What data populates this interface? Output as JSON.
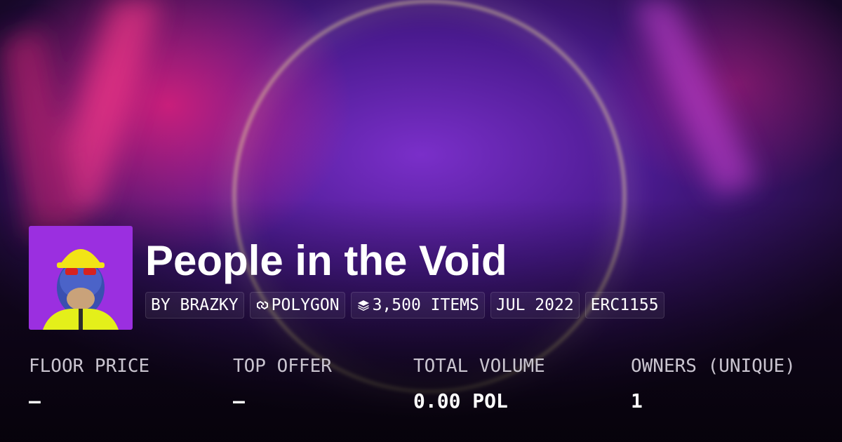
{
  "header": {
    "title": "People in the Void",
    "tags": [
      {
        "icon": "none",
        "text": "BY BRAZKY"
      },
      {
        "icon": "polygon",
        "text": "POLYGON"
      },
      {
        "icon": "layers",
        "text": "3,500 ITEMS"
      },
      {
        "icon": "none",
        "text": "JUL 2022"
      },
      {
        "icon": "none",
        "text": "ERC1155"
      }
    ]
  },
  "stats": [
    {
      "label": "FLOOR PRICE",
      "value": "–"
    },
    {
      "label": "TOP OFFER",
      "value": "–"
    },
    {
      "label": "TOTAL VOLUME",
      "value": "0.00 POL"
    },
    {
      "label": "OWNERS (UNIQUE)",
      "value": "1"
    }
  ]
}
